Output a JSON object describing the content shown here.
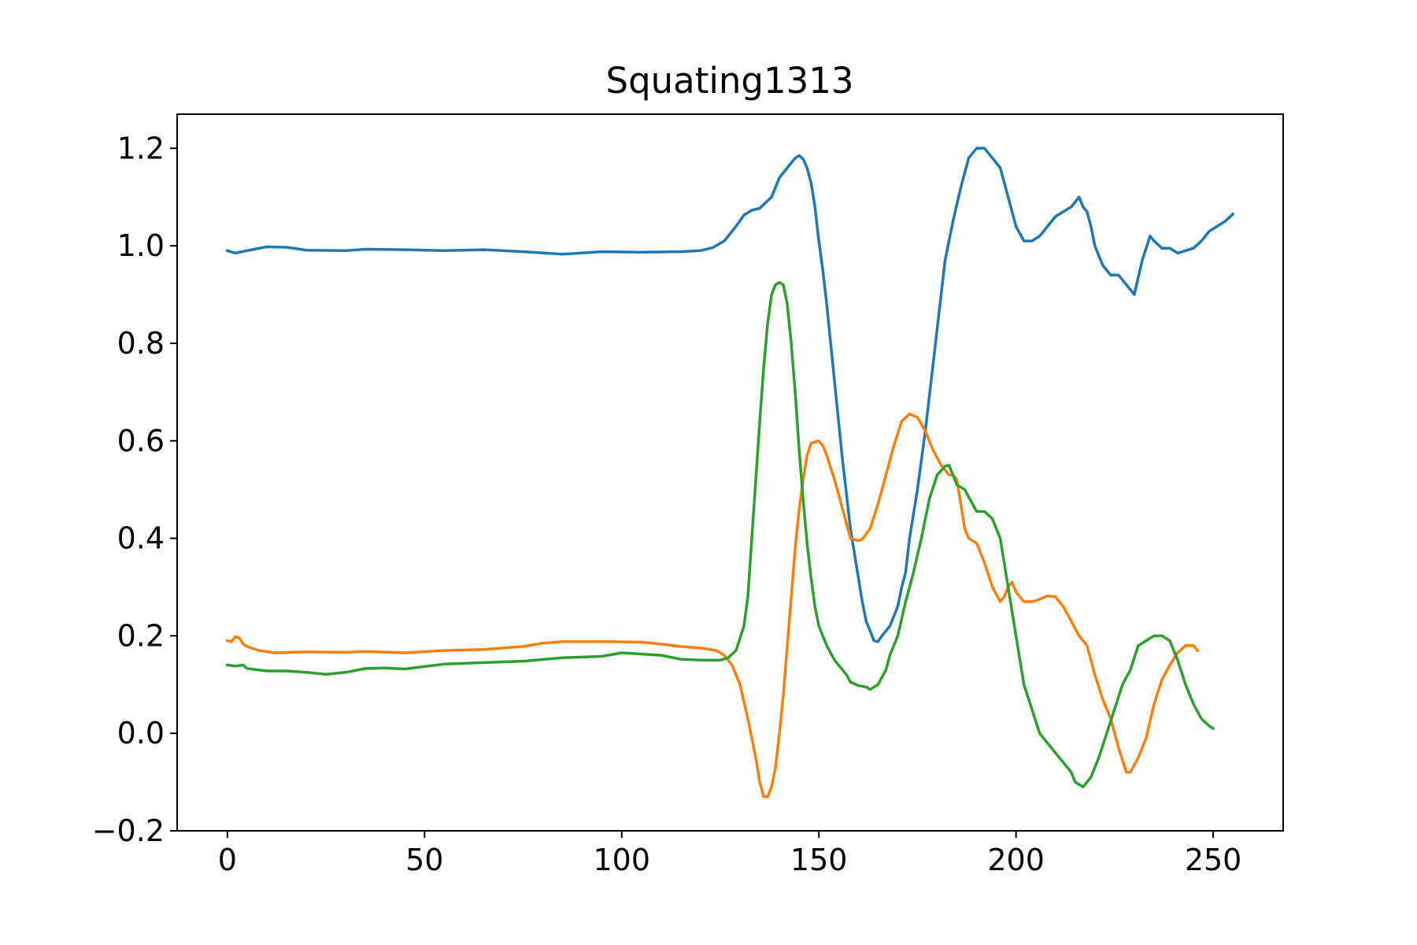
{
  "chart_data": {
    "type": "line",
    "title": "Squating1313",
    "xlabel": "",
    "ylabel": "",
    "xlim": [
      -12.75,
      267.75
    ],
    "ylim": [
      -0.2,
      1.27
    ],
    "grid": false,
    "legend": "none",
    "x_ticks": [
      0,
      50,
      100,
      150,
      200,
      250
    ],
    "y_ticks": [
      -0.2,
      0.0,
      0.2,
      0.4,
      0.6,
      0.8,
      1.0,
      1.2
    ],
    "x_tick_labels": [
      "0",
      "50",
      "100",
      "150",
      "200",
      "250"
    ],
    "y_tick_labels": [
      "−0.2",
      "0.0",
      "0.2",
      "0.4",
      "0.6",
      "0.8",
      "1.0",
      "1.2"
    ],
    "series": [
      {
        "color": "#1f77b4",
        "points": [
          [
            0,
            0.99
          ],
          [
            2,
            0.985
          ],
          [
            5,
            0.99
          ],
          [
            10,
            0.998
          ],
          [
            15,
            0.997
          ],
          [
            20,
            0.991
          ],
          [
            30,
            0.99
          ],
          [
            35,
            0.993
          ],
          [
            45,
            0.992
          ],
          [
            55,
            0.99
          ],
          [
            65,
            0.992
          ],
          [
            75,
            0.988
          ],
          [
            85,
            0.983
          ],
          [
            95,
            0.988
          ],
          [
            105,
            0.987
          ],
          [
            115,
            0.988
          ],
          [
            120,
            0.99
          ],
          [
            123,
            0.996
          ],
          [
            126,
            1.01
          ],
          [
            129,
            1.04
          ],
          [
            131,
            1.063
          ],
          [
            133,
            1.073
          ],
          [
            135,
            1.077
          ],
          [
            138,
            1.1
          ],
          [
            140,
            1.14
          ],
          [
            142,
            1.16
          ],
          [
            144,
            1.18
          ],
          [
            145,
            1.185
          ],
          [
            146,
            1.178
          ],
          [
            147,
            1.16
          ],
          [
            148,
            1.13
          ],
          [
            149,
            1.08
          ],
          [
            150,
            1.01
          ],
          [
            151,
            0.95
          ],
          [
            152,
            0.88
          ],
          [
            153,
            0.8
          ],
          [
            154,
            0.72
          ],
          [
            155,
            0.64
          ],
          [
            156,
            0.56
          ],
          [
            157,
            0.49
          ],
          [
            158,
            0.42
          ],
          [
            159,
            0.37
          ],
          [
            160,
            0.32
          ],
          [
            161,
            0.27
          ],
          [
            162,
            0.23
          ],
          [
            163,
            0.21
          ],
          [
            164,
            0.19
          ],
          [
            165,
            0.188
          ],
          [
            166,
            0.2
          ],
          [
            168,
            0.22
          ],
          [
            170,
            0.26
          ],
          [
            171,
            0.3
          ],
          [
            172,
            0.33
          ],
          [
            173,
            0.4
          ],
          [
            175,
            0.5
          ],
          [
            177,
            0.62
          ],
          [
            179,
            0.76
          ],
          [
            181,
            0.9
          ],
          [
            182,
            0.97
          ],
          [
            184,
            1.05
          ],
          [
            186,
            1.12
          ],
          [
            188,
            1.18
          ],
          [
            190,
            1.2
          ],
          [
            192,
            1.2
          ],
          [
            194,
            1.18
          ],
          [
            196,
            1.16
          ],
          [
            198,
            1.1
          ],
          [
            200,
            1.04
          ],
          [
            202,
            1.01
          ],
          [
            204,
            1.01
          ],
          [
            206,
            1.02
          ],
          [
            208,
            1.04
          ],
          [
            210,
            1.06
          ],
          [
            212,
            1.07
          ],
          [
            214,
            1.08
          ],
          [
            216,
            1.1
          ],
          [
            217,
            1.08
          ],
          [
            218,
            1.07
          ],
          [
            219,
            1.04
          ],
          [
            220,
            1.0
          ],
          [
            222,
            0.96
          ],
          [
            224,
            0.94
          ],
          [
            226,
            0.94
          ],
          [
            228,
            0.92
          ],
          [
            230,
            0.9
          ],
          [
            232,
            0.97
          ],
          [
            234,
            1.02
          ],
          [
            235,
            1.01
          ],
          [
            237,
            0.995
          ],
          [
            239,
            0.995
          ],
          [
            241,
            0.985
          ],
          [
            243,
            0.99
          ],
          [
            245,
            0.995
          ],
          [
            247,
            1.01
          ],
          [
            249,
            1.03
          ],
          [
            251,
            1.04
          ],
          [
            253,
            1.05
          ],
          [
            255,
            1.065
          ]
        ]
      },
      {
        "color": "#ff7f0e",
        "points": [
          [
            0,
            0.19
          ],
          [
            1,
            0.188
          ],
          [
            2,
            0.198
          ],
          [
            3,
            0.196
          ],
          [
            4,
            0.183
          ],
          [
            5,
            0.178
          ],
          [
            8,
            0.17
          ],
          [
            12,
            0.165
          ],
          [
            20,
            0.167
          ],
          [
            30,
            0.166
          ],
          [
            35,
            0.168
          ],
          [
            45,
            0.165
          ],
          [
            55,
            0.17
          ],
          [
            65,
            0.172
          ],
          [
            75,
            0.178
          ],
          [
            80,
            0.185
          ],
          [
            85,
            0.188
          ],
          [
            95,
            0.188
          ],
          [
            105,
            0.187
          ],
          [
            110,
            0.183
          ],
          [
            115,
            0.178
          ],
          [
            120,
            0.175
          ],
          [
            124,
            0.17
          ],
          [
            126,
            0.16
          ],
          [
            128,
            0.14
          ],
          [
            130,
            0.1
          ],
          [
            132,
            0.03
          ],
          [
            134,
            -0.05
          ],
          [
            135,
            -0.1
          ],
          [
            136,
            -0.13
          ],
          [
            137,
            -0.13
          ],
          [
            138,
            -0.11
          ],
          [
            139,
            -0.07
          ],
          [
            140,
            0.0
          ],
          [
            141,
            0.08
          ],
          [
            142,
            0.18
          ],
          [
            143,
            0.28
          ],
          [
            144,
            0.38
          ],
          [
            145,
            0.46
          ],
          [
            146,
            0.52
          ],
          [
            147,
            0.57
          ],
          [
            148,
            0.595
          ],
          [
            150,
            0.6
          ],
          [
            151,
            0.59
          ],
          [
            152,
            0.57
          ],
          [
            154,
            0.52
          ],
          [
            156,
            0.46
          ],
          [
            157,
            0.43
          ],
          [
            158,
            0.4
          ],
          [
            160,
            0.395
          ],
          [
            161,
            0.398
          ],
          [
            163,
            0.42
          ],
          [
            165,
            0.47
          ],
          [
            167,
            0.53
          ],
          [
            169,
            0.59
          ],
          [
            171,
            0.64
          ],
          [
            173,
            0.655
          ],
          [
            175,
            0.648
          ],
          [
            177,
            0.62
          ],
          [
            179,
            0.58
          ],
          [
            181,
            0.55
          ],
          [
            183,
            0.53
          ],
          [
            184,
            0.53
          ],
          [
            185,
            0.52
          ],
          [
            186,
            0.47
          ],
          [
            187,
            0.42
          ],
          [
            188,
            0.4
          ],
          [
            190,
            0.39
          ],
          [
            192,
            0.35
          ],
          [
            194,
            0.3
          ],
          [
            196,
            0.27
          ],
          [
            197,
            0.28
          ],
          [
            198,
            0.3
          ],
          [
            199,
            0.31
          ],
          [
            200,
            0.29
          ],
          [
            202,
            0.27
          ],
          [
            204,
            0.27
          ],
          [
            206,
            0.275
          ],
          [
            208,
            0.282
          ],
          [
            210,
            0.28
          ],
          [
            212,
            0.26
          ],
          [
            214,
            0.23
          ],
          [
            216,
            0.2
          ],
          [
            218,
            0.18
          ],
          [
            220,
            0.12
          ],
          [
            222,
            0.07
          ],
          [
            224,
            0.03
          ],
          [
            226,
            -0.03
          ],
          [
            228,
            -0.08
          ],
          [
            229,
            -0.08
          ],
          [
            231,
            -0.05
          ],
          [
            233,
            -0.01
          ],
          [
            235,
            0.06
          ],
          [
            237,
            0.11
          ],
          [
            239,
            0.14
          ],
          [
            241,
            0.165
          ],
          [
            243,
            0.18
          ],
          [
            245,
            0.18
          ],
          [
            246,
            0.17
          ]
        ]
      },
      {
        "color": "#2ca02c",
        "points": [
          [
            0,
            0.14
          ],
          [
            2,
            0.138
          ],
          [
            4,
            0.14
          ],
          [
            5,
            0.133
          ],
          [
            10,
            0.128
          ],
          [
            15,
            0.128
          ],
          [
            20,
            0.125
          ],
          [
            25,
            0.121
          ],
          [
            30,
            0.125
          ],
          [
            35,
            0.133
          ],
          [
            40,
            0.134
          ],
          [
            45,
            0.132
          ],
          [
            50,
            0.137
          ],
          [
            55,
            0.142
          ],
          [
            65,
            0.145
          ],
          [
            75,
            0.148
          ],
          [
            85,
            0.155
          ],
          [
            95,
            0.158
          ],
          [
            100,
            0.165
          ],
          [
            110,
            0.16
          ],
          [
            115,
            0.152
          ],
          [
            120,
            0.15
          ],
          [
            125,
            0.15
          ],
          [
            127,
            0.155
          ],
          [
            129,
            0.17
          ],
          [
            131,
            0.22
          ],
          [
            132,
            0.28
          ],
          [
            133,
            0.4
          ],
          [
            134,
            0.52
          ],
          [
            135,
            0.64
          ],
          [
            136,
            0.75
          ],
          [
            137,
            0.84
          ],
          [
            138,
            0.9
          ],
          [
            139,
            0.92
          ],
          [
            140,
            0.925
          ],
          [
            141,
            0.92
          ],
          [
            142,
            0.88
          ],
          [
            143,
            0.8
          ],
          [
            144,
            0.7
          ],
          [
            145,
            0.58
          ],
          [
            146,
            0.48
          ],
          [
            147,
            0.39
          ],
          [
            148,
            0.32
          ],
          [
            149,
            0.26
          ],
          [
            150,
            0.22
          ],
          [
            152,
            0.18
          ],
          [
            154,
            0.15
          ],
          [
            156,
            0.13
          ],
          [
            157,
            0.12
          ],
          [
            158,
            0.105
          ],
          [
            160,
            0.098
          ],
          [
            162,
            0.095
          ],
          [
            163,
            0.09
          ],
          [
            165,
            0.1
          ],
          [
            167,
            0.13
          ],
          [
            168,
            0.16
          ],
          [
            170,
            0.2
          ],
          [
            172,
            0.27
          ],
          [
            174,
            0.33
          ],
          [
            176,
            0.4
          ],
          [
            178,
            0.48
          ],
          [
            180,
            0.53
          ],
          [
            182,
            0.548
          ],
          [
            183,
            0.55
          ],
          [
            184,
            0.53
          ],
          [
            185,
            0.51
          ],
          [
            187,
            0.5
          ],
          [
            189,
            0.47
          ],
          [
            190,
            0.455
          ],
          [
            192,
            0.455
          ],
          [
            194,
            0.44
          ],
          [
            196,
            0.4
          ],
          [
            198,
            0.3
          ],
          [
            200,
            0.2
          ],
          [
            202,
            0.1
          ],
          [
            204,
            0.05
          ],
          [
            206,
            0.0
          ],
          [
            208,
            -0.02
          ],
          [
            210,
            -0.04
          ],
          [
            212,
            -0.06
          ],
          [
            214,
            -0.08
          ],
          [
            215,
            -0.1
          ],
          [
            217,
            -0.11
          ],
          [
            219,
            -0.09
          ],
          [
            221,
            -0.05
          ],
          [
            223,
            0.0
          ],
          [
            225,
            0.05
          ],
          [
            227,
            0.1
          ],
          [
            229,
            0.13
          ],
          [
            231,
            0.18
          ],
          [
            233,
            0.19
          ],
          [
            235,
            0.2
          ],
          [
            237,
            0.2
          ],
          [
            239,
            0.19
          ],
          [
            241,
            0.15
          ],
          [
            243,
            0.1
          ],
          [
            245,
            0.06
          ],
          [
            247,
            0.03
          ],
          [
            249,
            0.015
          ],
          [
            250,
            0.01
          ]
        ]
      }
    ]
  }
}
